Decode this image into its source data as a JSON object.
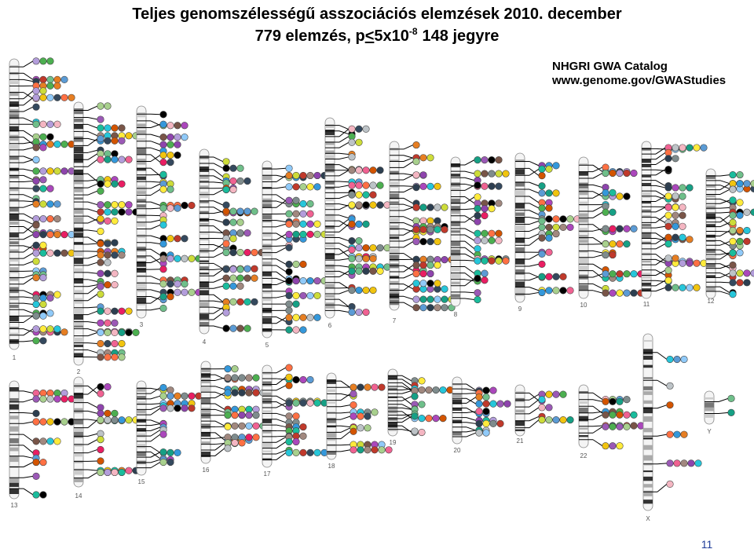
{
  "title": {
    "line1": "Teljes genomszélességű asszociációs elemzések 2010. december",
    "line2": {
      "prefix": "779 elemzés, p",
      "lt": "<",
      "base": "5x10",
      "exponent": "-8",
      "suffix": "148 jegyre"
    }
  },
  "catalog": {
    "name": "NHGRI GWA Catalog",
    "url": "www.genome.gov/GWAStudies"
  },
  "chromosomes": [
    "1",
    "2",
    "3",
    "4",
    "5",
    "6",
    "7",
    "8",
    "9",
    "10",
    "11",
    "12",
    "13",
    "14",
    "15",
    "16",
    "17",
    "18",
    "19",
    "20",
    "21",
    "22",
    "X",
    "Y"
  ],
  "slide_number": "11"
}
